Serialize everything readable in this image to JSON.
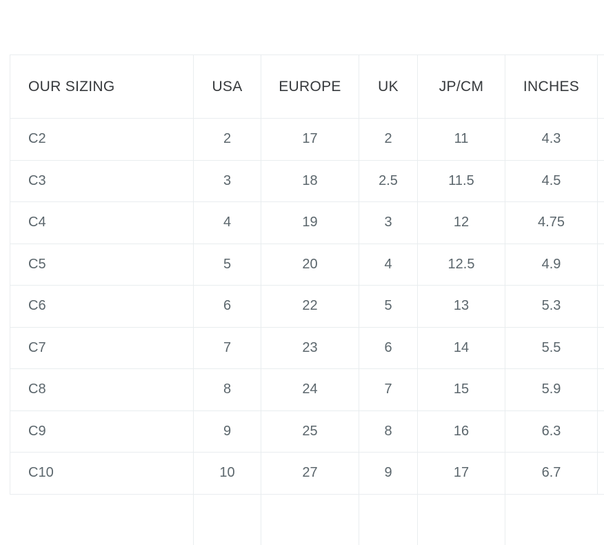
{
  "theme": {
    "page_background": "#ffffff",
    "border_color": "#e9edef",
    "header_text_color": "#36393c",
    "cell_text_color": "#5b666c"
  },
  "size_chart": {
    "columns": [
      {
        "key": "our-sizing",
        "label": "OUR SIZING",
        "align": "left"
      },
      {
        "key": "usa",
        "label": "USA",
        "align": "center"
      },
      {
        "key": "europe",
        "label": "EUROPE",
        "align": "center"
      },
      {
        "key": "uk",
        "label": "UK",
        "align": "center"
      },
      {
        "key": "jp-cm",
        "label": "JP/CM",
        "align": "center"
      },
      {
        "key": "inches",
        "label": "INCHES",
        "align": "center"
      }
    ],
    "rows": [
      [
        "C2",
        "2",
        "17",
        "2",
        "11",
        "4.3"
      ],
      [
        "C3",
        "3",
        "18",
        "2.5",
        "11.5",
        "4.5"
      ],
      [
        "C4",
        "4",
        "19",
        "3",
        "12",
        "4.75"
      ],
      [
        "C5",
        "5",
        "20",
        "4",
        "12.5",
        "4.9"
      ],
      [
        "C6",
        "6",
        "22",
        "5",
        "13",
        "5.3"
      ],
      [
        "C7",
        "7",
        "23",
        "6",
        "14",
        "5.5"
      ],
      [
        "C8",
        "8",
        "24",
        "7",
        "15",
        "5.9"
      ],
      [
        "C9",
        "9",
        "25",
        "8",
        "16",
        "6.3"
      ],
      [
        "C10",
        "10",
        "27",
        "9",
        "17",
        "6.7"
      ]
    ]
  }
}
